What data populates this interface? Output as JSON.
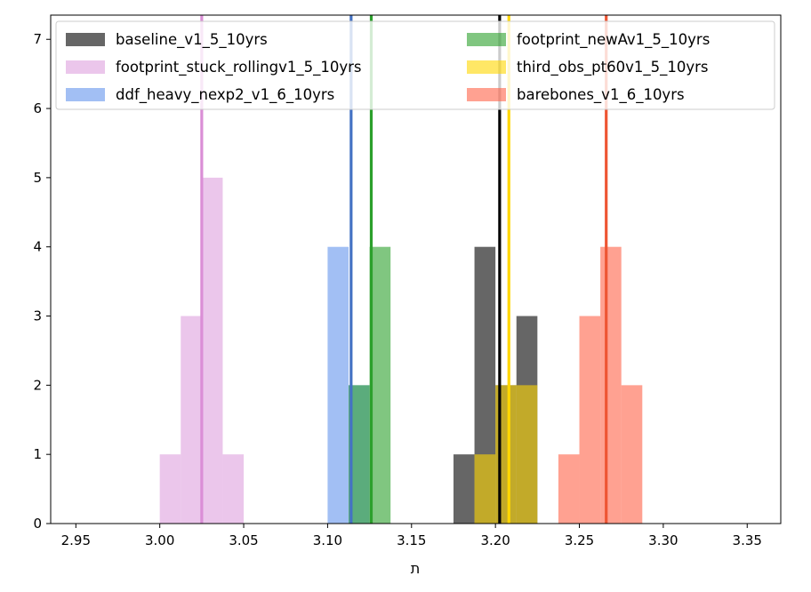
{
  "chart_data": {
    "type": "bar",
    "subtype": "overlaid-histogram",
    "xlabel": "ת",
    "ylabel": "",
    "xlim": [
      2.935,
      3.37
    ],
    "ylim": [
      0,
      7.35
    ],
    "xticks": [
      "2.95",
      "3.00",
      "3.05",
      "3.10",
      "3.15",
      "3.20",
      "3.25",
      "3.30",
      "3.35"
    ],
    "yticks": [
      "0",
      "1",
      "2",
      "3",
      "4",
      "5",
      "6",
      "7"
    ],
    "bin_width": 0.0125,
    "legend_position": "top",
    "legend_columns": 2,
    "series": [
      {
        "name": "baseline_v1_5_10yrs",
        "color": "#555555",
        "alpha": 0.9,
        "line_color": "#000000",
        "mean": 3.2025,
        "bins": [
          [
            3.175,
            1
          ],
          [
            3.1875,
            4
          ],
          [
            3.2,
            2
          ],
          [
            3.2125,
            3
          ]
        ]
      },
      {
        "name": "footprint_stuck_rollingv1_5_10yrs",
        "color": "#dda0dd",
        "alpha": 0.6,
        "line_color": "#da8ed6",
        "mean": 3.025,
        "bins": [
          [
            3.0,
            1
          ],
          [
            3.0125,
            3
          ],
          [
            3.025,
            5
          ],
          [
            3.0375,
            1
          ]
        ]
      },
      {
        "name": "ddf_heavy_nexp2_v1_6_10yrs",
        "color": "#6495ed",
        "alpha": 0.6,
        "line_color": "#4472c4",
        "mean": 3.114,
        "bins": [
          [
            3.1,
            4
          ],
          [
            3.1125,
            2
          ]
        ]
      },
      {
        "name": "footprint_newAv1_5_10yrs",
        "color": "#2ca02c",
        "alpha": 0.6,
        "line_color": "#2ca02c",
        "mean": 3.126,
        "bins": [
          [
            3.1125,
            2
          ],
          [
            3.125,
            4
          ]
        ]
      },
      {
        "name": "third_obs_pt60v1_5_10yrs",
        "color": "#ffd700",
        "alpha": 0.6,
        "line_color": "#ffd700",
        "mean": 3.208,
        "bins": [
          [
            3.1875,
            1
          ],
          [
            3.2,
            2
          ],
          [
            3.2125,
            2
          ]
        ]
      },
      {
        "name": "barebones_v1_6_10yrs",
        "color": "#ff6347",
        "alpha": 0.6,
        "line_color": "#ee5533",
        "mean": 3.266,
        "bins": [
          [
            3.2375,
            1
          ],
          [
            3.25,
            3
          ],
          [
            3.2625,
            4
          ],
          [
            3.275,
            2
          ]
        ]
      }
    ]
  }
}
